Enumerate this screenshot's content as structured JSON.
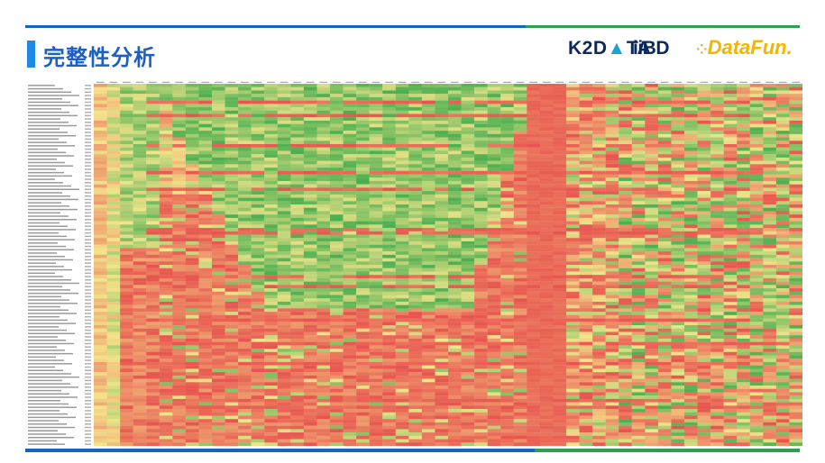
{
  "header": {
    "title": "完整性分析"
  },
  "logos": [
    {
      "name": "k2data",
      "text_a": "K2D",
      "text_b": "TA"
    },
    {
      "name": "iibd",
      "text": "iiBD"
    },
    {
      "name": "datafun",
      "text": "DataFun."
    }
  ],
  "colors": {
    "accent_blue": "#1565c0",
    "accent_green": "#2e9e4f",
    "title_blue": "#1e5fc2",
    "heat_low": "#e8544f",
    "heat_mid": "#f3e48a",
    "heat_high": "#4caf50"
  },
  "chart_data": {
    "type": "heatmap",
    "rows": 108,
    "data_columns": 54,
    "color_scale": [
      "red",
      "yellow",
      "green"
    ],
    "pattern": "mostly red; green/yellow band across upper-middle columns; solid red block near column 33-35; green recovery in right-hand columns"
  }
}
